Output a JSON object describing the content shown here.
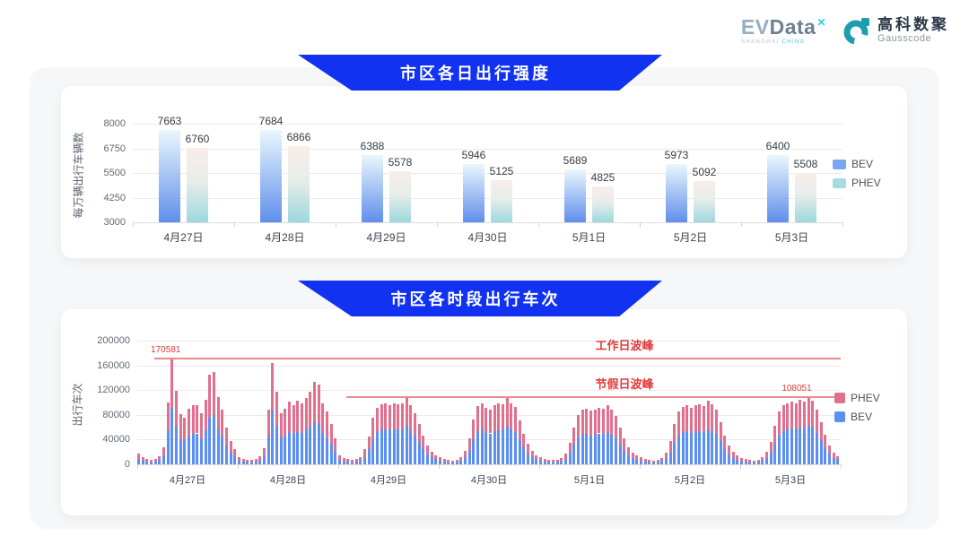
{
  "header": {
    "evdata_logo": {
      "ev": "EV",
      "data": "Data",
      "mark": "✕",
      "sub_left": "SHANGHAI",
      "sub_right": "CHINA"
    },
    "gausscode_logo": {
      "cn": "高科数聚",
      "en": "Gausscode"
    }
  },
  "colors": {
    "banner_blue": "#1132f0",
    "bev_gradient": [
      "#eaf7fd",
      "#5f8eeb"
    ],
    "phev_gradient": [
      "#f9ede9",
      "#e7edea",
      "#9dd8dd"
    ],
    "bev_legend": "#7aa6f0",
    "phev_legend": "#a6dbdf",
    "stack_bev": "#5b8ff2",
    "stack_phev": "#e0708e",
    "annotation_red": "#e03b3b",
    "annotation_line": "#ef8a8a"
  },
  "chart_data": [
    {
      "type": "bar",
      "title": "市区各日出行强度",
      "ylabel": "每万辆出行车辆数",
      "categories": [
        "4月27日",
        "4月28日",
        "4月29日",
        "4月30日",
        "5月1日",
        "5月2日",
        "5月3日"
      ],
      "series": [
        {
          "name": "BEV",
          "values": [
            7663,
            7684,
            6388,
            5946,
            5689,
            5973,
            6400
          ]
        },
        {
          "name": "PHEV",
          "values": [
            6760,
            6866,
            5578,
            5125,
            4825,
            5092,
            5508
          ]
        }
      ],
      "ylim": [
        3000,
        8000
      ],
      "yticks": [
        3000,
        4250,
        5500,
        6750,
        8000
      ],
      "grid": true,
      "legend_position": "right",
      "legend": [
        "BEV",
        "PHEV"
      ]
    },
    {
      "type": "bar",
      "subtype": "stacked-hourly",
      "title": "市区各时段出行车次",
      "ylabel": "出行车次",
      "categories": [
        "4月27日",
        "4月28日",
        "4月29日",
        "4月30日",
        "5月1日",
        "5月2日",
        "5月3日"
      ],
      "hours_per_day": 24,
      "ylim": [
        0,
        200000
      ],
      "yticks": [
        0,
        40000,
        80000,
        120000,
        160000,
        200000
      ],
      "grid": true,
      "legend_position": "right",
      "legend": [
        "PHEV",
        "BEV"
      ],
      "series": [
        {
          "name": "BEV",
          "days": [
            [
              9000,
              6000,
              4500,
              3500,
              4500,
              7000,
              14000,
              55000,
              91000,
              62000,
              41000,
              39000,
              46000,
              49000,
              50000,
              42000,
              55000,
              76000,
              79500,
              57000,
              46000,
              31000,
              19000,
              13000
            ],
            [
              6000,
              4500,
              4000,
              3500,
              4500,
              6500,
              13500,
              47000,
              88000,
              62000,
              43000,
              46000,
              52000,
              49000,
              53000,
              51000,
              55000,
              61000,
              68000,
              65000,
              51000,
              44000,
              33000,
              21000
            ],
            [
              7000,
              5000,
              4000,
              3500,
              4000,
              6000,
              12000,
              24000,
              41000,
              52000,
              56000,
              57000,
              55000,
              57000,
              56000,
              57000,
              62000,
              55000,
              47000,
              36000,
              25000,
              16000,
              11000,
              8000
            ],
            [
              5500,
              4200,
              3500,
              3200,
              3800,
              5500,
              11000,
              22000,
              40000,
              53000,
              56000,
              51000,
              50000,
              54000,
              55000,
              55000,
              62000,
              56000,
              52000,
              39000,
              27000,
              17000,
              11000,
              8000
            ],
            [
              6000,
              4500,
              3800,
              3500,
              3800,
              5000,
              9000,
              18000,
              32000,
              43000,
              48000,
              49000,
              47000,
              48000,
              50000,
              49000,
              52000,
              48000,
              42000,
              32000,
              22000,
              15000,
              10000,
              7000
            ],
            [
              5500,
              4200,
              3500,
              3200,
              3800,
              5200,
              9500,
              19000,
              35000,
              47000,
              52000,
              53000,
              51000,
              53000,
              54000,
              52000,
              57000,
              54000,
              49000,
              37000,
              25000,
              16000,
              10500,
              7200
            ],
            [
              5000,
              4000,
              3500,
              3200,
              3800,
              5500,
              10000,
              19000,
              34000,
              48000,
              54000,
              56000,
              58000,
              57000,
              60000,
              58000,
              63000,
              60000,
              51000,
              39000,
              27000,
              17000,
              10000,
              7000
            ]
          ]
        },
        {
          "name": "PHEV",
          "days": [
            [
              8500,
              5500,
              4000,
              3500,
              4000,
              6500,
              13000,
              45500,
              79581,
              57500,
              39500,
              37000,
              44000,
              46500,
              46000,
              40000,
              50000,
              69500,
              69500,
              51500,
              43000,
              29000,
              18000,
              12000
            ],
            [
              6000,
              4500,
              3500,
              3500,
              4000,
              6500,
              12500,
              41000,
              75500,
              55000,
              40000,
              44000,
              49000,
              46000,
              50000,
              48000,
              52000,
              56000,
              66000,
              63500,
              48000,
              42000,
              32000,
              21000
            ],
            [
              7000,
              5000,
              4000,
              3500,
              4000,
              6000,
              12000,
              21000,
              34000,
              40000,
              41000,
              42000,
              40000,
              41000,
              41000,
              41000,
              45000,
              41000,
              36000,
              29000,
              21000,
              15000,
              10000,
              7000
            ],
            [
              5500,
              4300,
              3500,
              3300,
              3700,
              5500,
              11000,
              20000,
              32000,
              41000,
              43000,
              40000,
              38000,
              42000,
              43000,
              42000,
              46000,
              43000,
              41000,
              32000,
              23000,
              16000,
              11000,
              7000
            ],
            [
              6000,
              4500,
              3700,
              3500,
              3700,
              5000,
              9000,
              17000,
              28000,
              37000,
              40000,
              41000,
              40000,
              41000,
              42000,
              41000,
              43000,
              40000,
              36000,
              28000,
              20000,
              13000,
              9000,
              7000
            ],
            [
              5500,
              4300,
              3500,
              3300,
              3700,
              5300,
              9500,
              19000,
              30000,
              38000,
              41000,
              42000,
              41000,
              42000,
              43000,
              42000,
              46000,
              43000,
              39000,
              31000,
              22000,
              14000,
              9500,
              6800
            ],
            [
              5000,
              4000,
              3500,
              3300,
              3700,
              5500,
              10000,
              17000,
              28000,
              38000,
              41000,
              42000,
              43000,
              42000,
              44000,
              43000,
              45051,
              43000,
              37000,
              29000,
              21000,
              13000,
              9000,
              6000
            ]
          ]
        }
      ],
      "annotations": {
        "lines": [
          {
            "label": "工作日波峰",
            "value": 170581,
            "start_index": 4
          },
          {
            "label": "节假日波峰",
            "value": 108051,
            "start_index": 50
          }
        ],
        "points": [
          {
            "text": "170581",
            "index": 6.8,
            "value": 170581
          },
          {
            "text": "108051",
            "index": 157.5,
            "value": 108051
          }
        ]
      }
    }
  ]
}
